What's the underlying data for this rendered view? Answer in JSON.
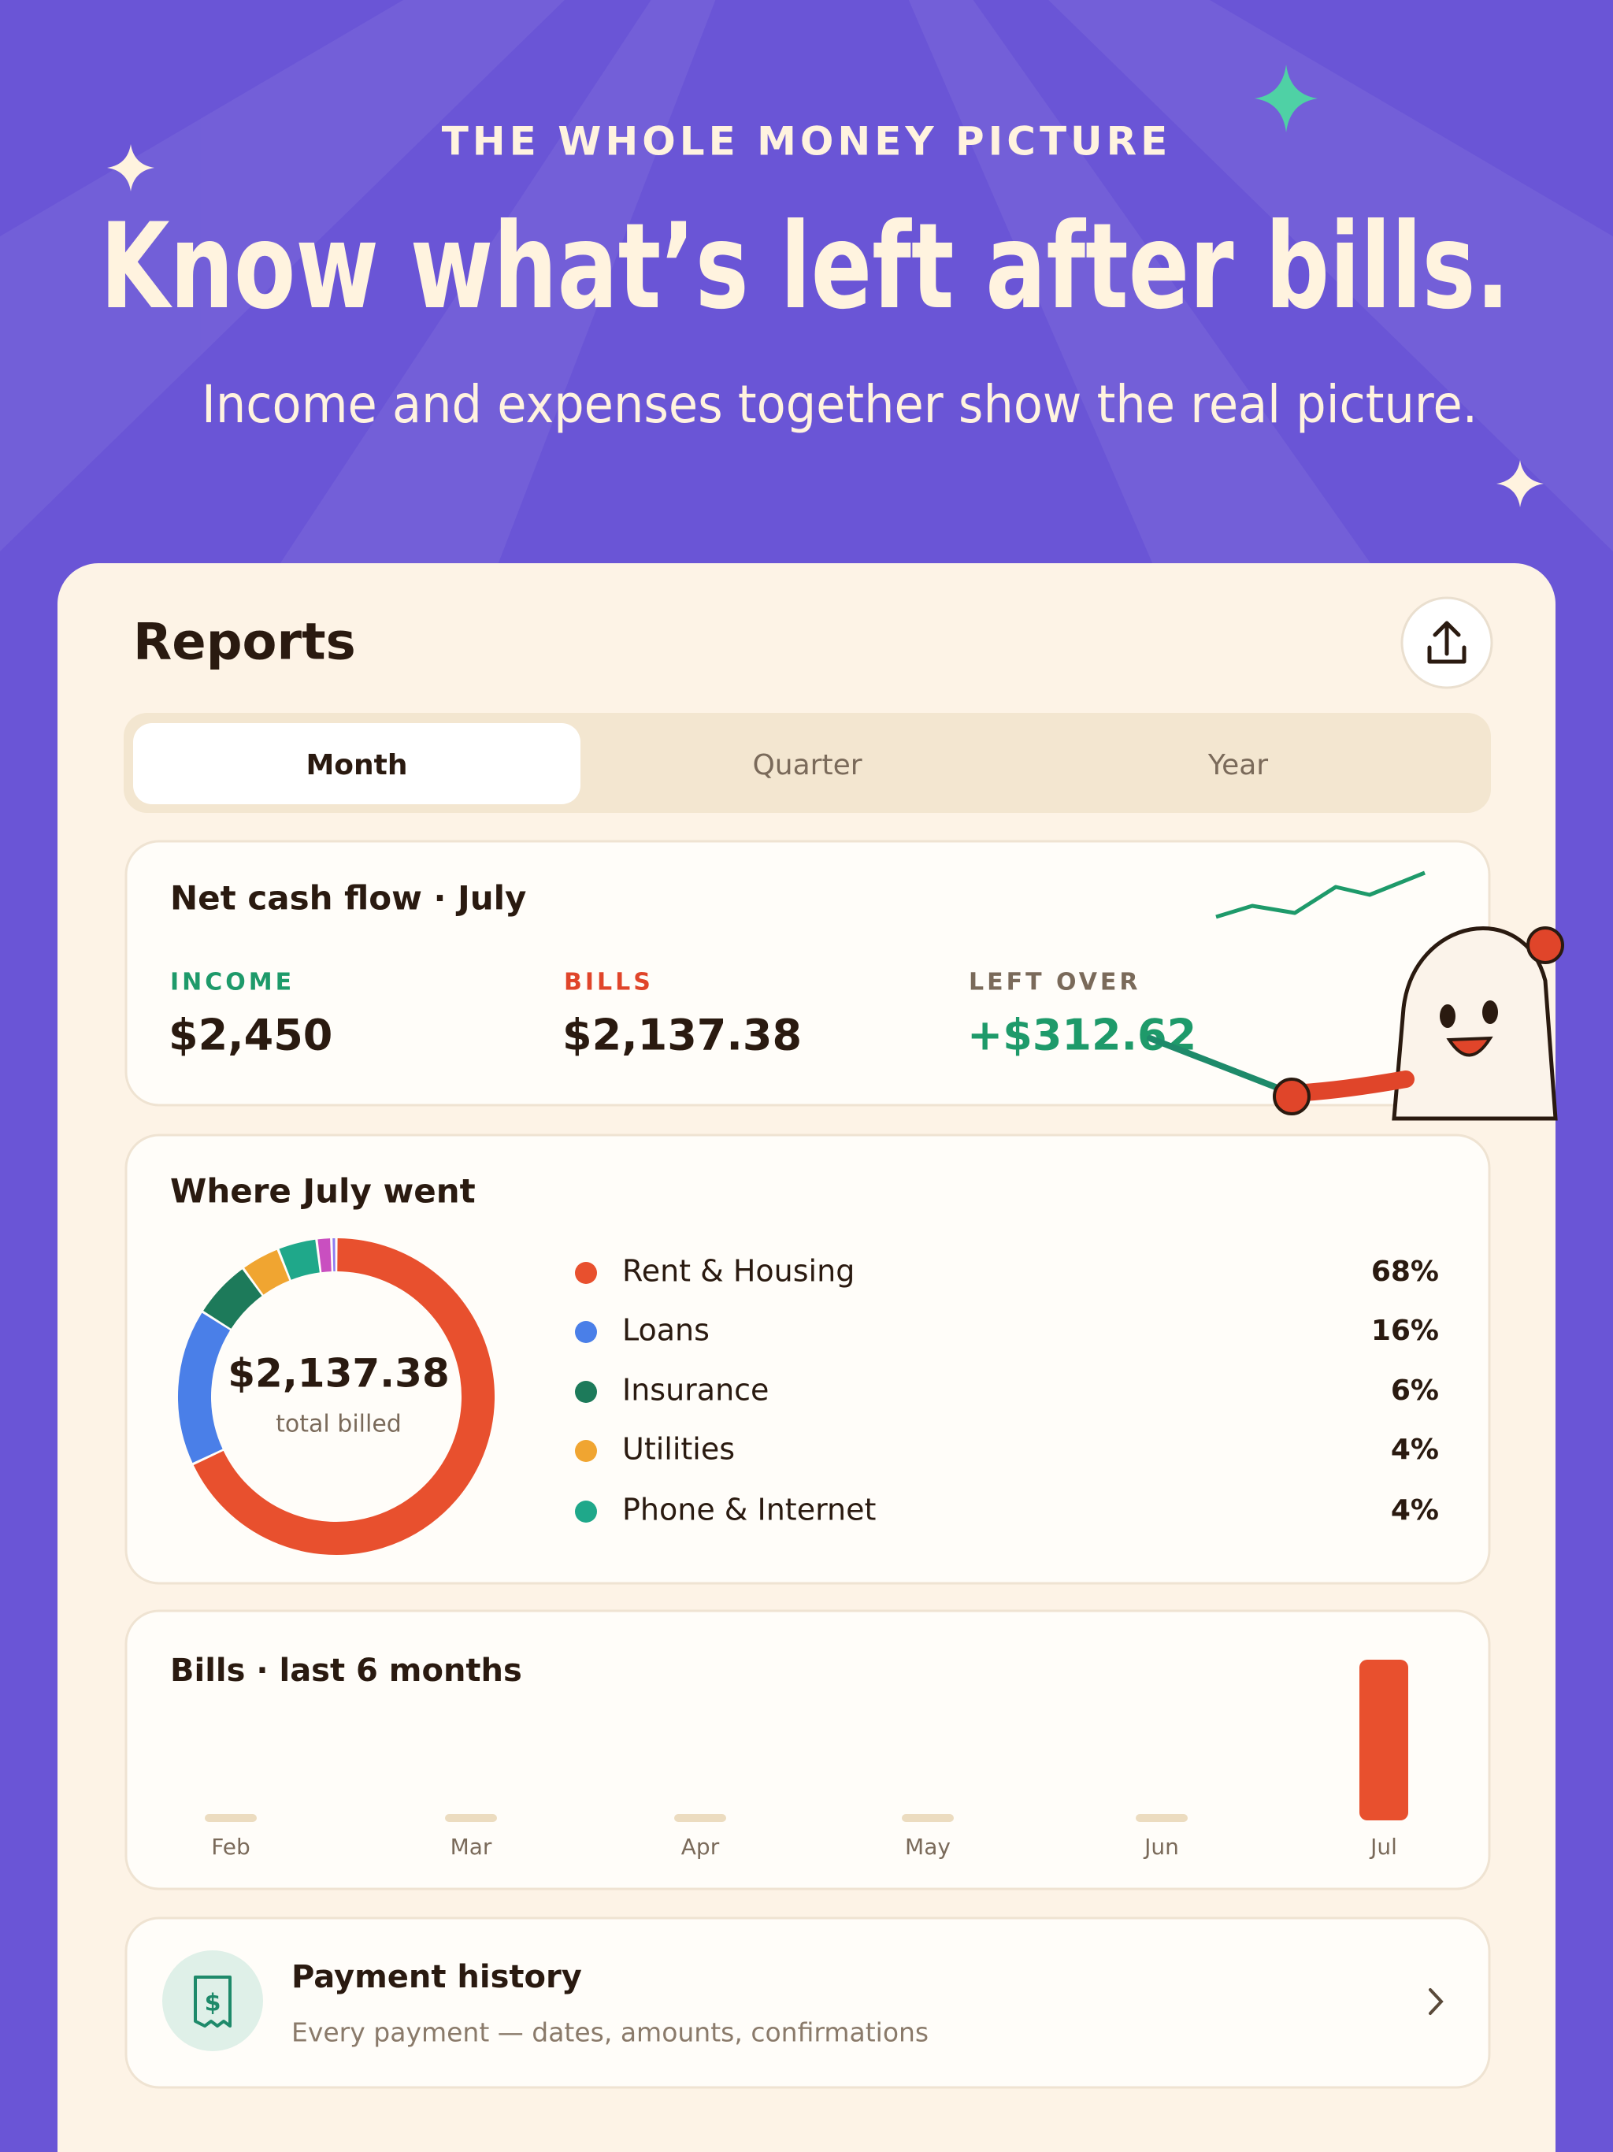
{
  "header": {
    "eyebrow": "THE WHOLE MONEY PICTURE",
    "title": "Know what’s left after bills.",
    "subtitle": "Income and expenses together show the real picture."
  },
  "reports": {
    "title": "Reports",
    "tabs": [
      "Month",
      "Quarter",
      "Year"
    ],
    "selected_tab": 0,
    "net_cash_flow": {
      "title": "Net cash flow · July",
      "items": [
        {
          "label": "INCOME",
          "value": "$2,450"
        },
        {
          "label": "BILLS",
          "value": "$2,137.38"
        },
        {
          "label": "LEFT OVER",
          "value": "+$312.62"
        }
      ]
    },
    "breakdown": {
      "title": "Where July went",
      "total": "$2,137.38",
      "total_label": "total billed",
      "segments": [
        {
          "name": "Rent & Housing",
          "value": 68,
          "value_label": "68%",
          "color": "#e8502e"
        },
        {
          "name": "Loans",
          "value": 16,
          "value_label": "16%",
          "color": "#4a7fe8"
        },
        {
          "name": "Insurance",
          "value": 6,
          "value_label": "6%",
          "color": "#1d7a5a"
        },
        {
          "name": "Utilities",
          "value": 4,
          "value_label": "4%",
          "color": "#f0a531"
        },
        {
          "name": "Phone & Internet",
          "value": 4,
          "value_label": "4%",
          "color": "#1fa88a"
        }
      ],
      "extra_segments": [
        {
          "value": 1.5,
          "color": "#c94fc0"
        },
        {
          "value": 0.5,
          "color": "#8f7cf0"
        }
      ]
    },
    "bills_chart": {
      "title": "Bills · last 6 months",
      "categories": [
        "Feb",
        "Mar",
        "Apr",
        "May",
        "Jun",
        "Jul"
      ],
      "values": [
        0,
        0,
        0,
        0,
        0,
        2137.38
      ],
      "color": "#e8502e"
    }
  },
  "payment_history": {
    "title": "Payment history",
    "subtitle": "Every payment — dates, amounts, confirmations"
  }
}
